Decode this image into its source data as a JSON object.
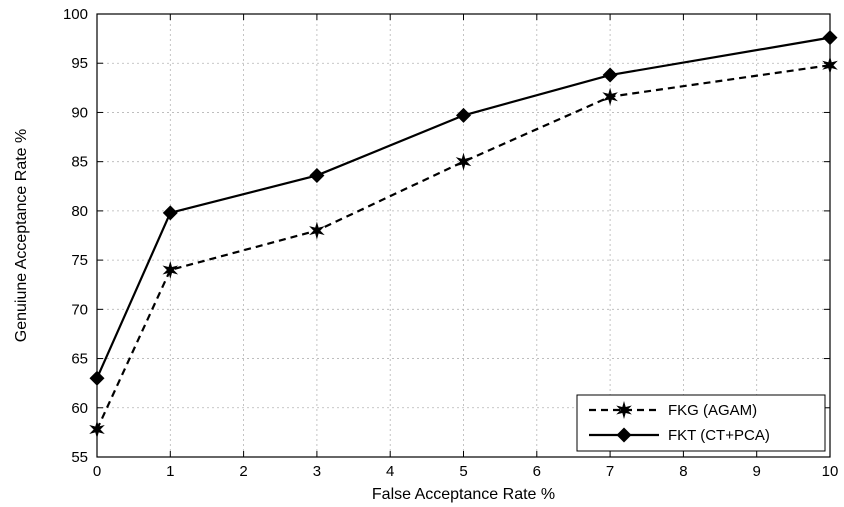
{
  "chart_data": {
    "type": "line",
    "title": "",
    "xlabel": "False Acceptance Rate %",
    "ylabel": "Genuiune Acceptance Rate %",
    "xlim": [
      0,
      10
    ],
    "ylim": [
      55,
      100
    ],
    "xticks": [
      0,
      1,
      2,
      3,
      4,
      5,
      6,
      7,
      8,
      9,
      10
    ],
    "yticks": [
      55,
      60,
      65,
      70,
      75,
      80,
      85,
      90,
      95,
      100
    ],
    "grid": true,
    "legend_position": "bottom-right",
    "series": [
      {
        "name": "FKG (AGAM)",
        "line_style": "dashed",
        "marker": "star",
        "color": "#000000",
        "x": [
          0,
          1,
          3,
          5,
          7,
          10
        ],
        "y": [
          57.8,
          74.0,
          78.0,
          85.0,
          91.6,
          94.8
        ]
      },
      {
        "name": "FKT (CT+PCA)",
        "line_style": "solid",
        "marker": "diamond",
        "color": "#000000",
        "x": [
          0,
          1,
          3,
          5,
          7,
          10
        ],
        "y": [
          63.0,
          79.8,
          83.6,
          89.7,
          93.8,
          97.6
        ]
      }
    ]
  }
}
